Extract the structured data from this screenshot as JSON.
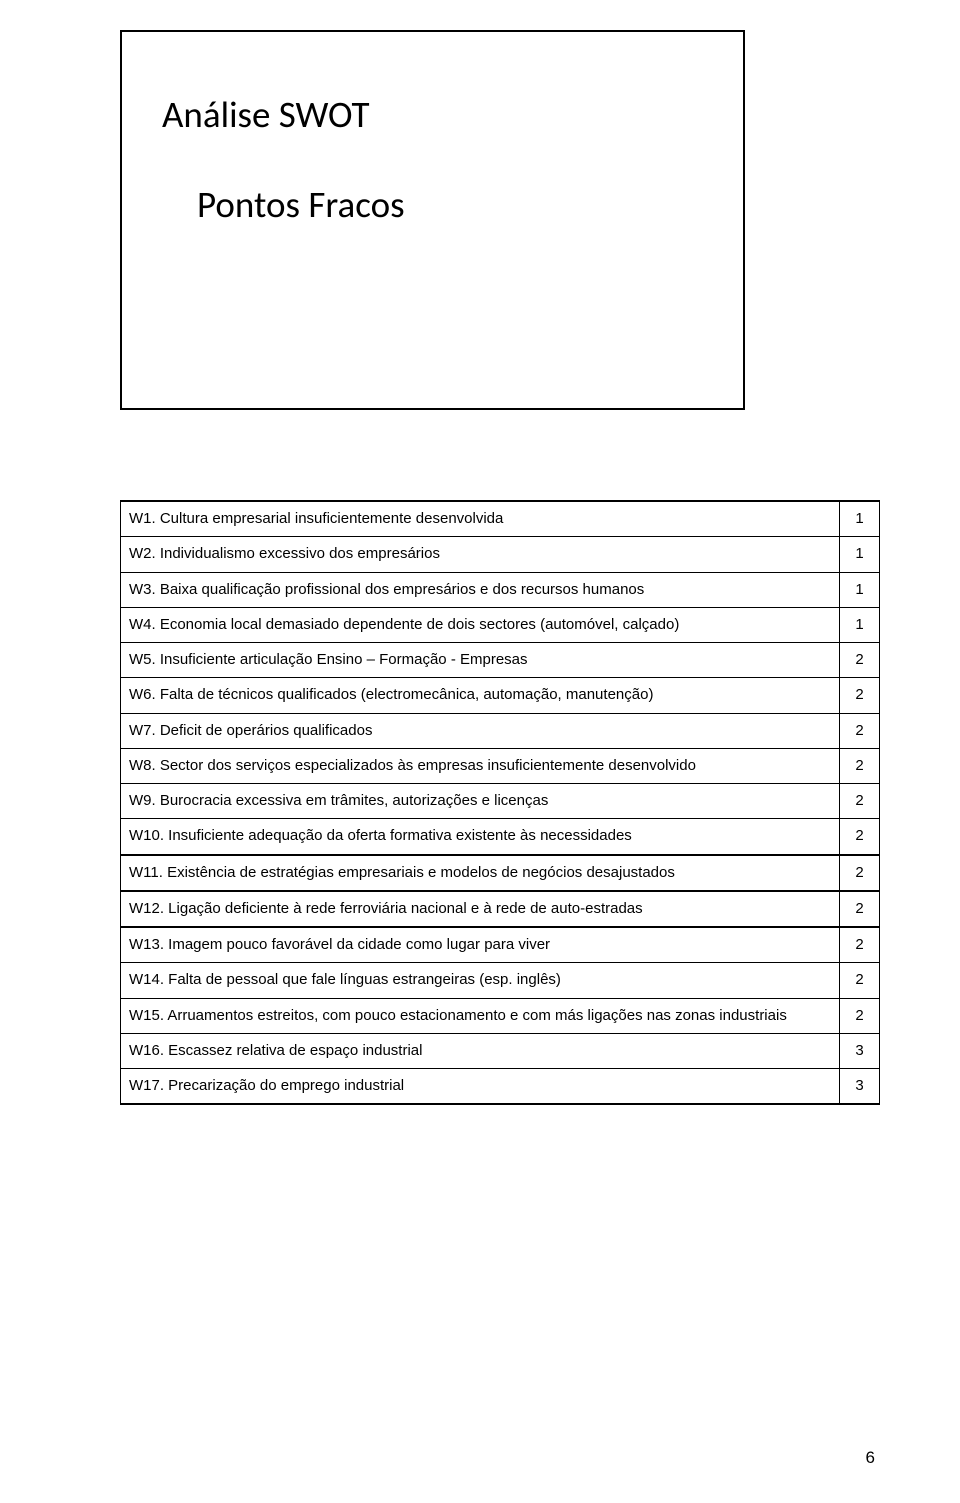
{
  "document": {
    "page_number": "6",
    "colors": {
      "text": "#000000",
      "border": "#000000",
      "background": "#ffffff"
    },
    "title_box": {
      "heading": "Análise SWOT",
      "subheading": "Pontos Fracos"
    },
    "table": {
      "type": "table",
      "font_family": "Verdana",
      "font_size_pt": 11,
      "columns": [
        "label",
        "value"
      ],
      "rows": [
        {
          "label": "W1. Cultura empresarial insuficientemente desenvolvida",
          "value": "1",
          "block_top": false
        },
        {
          "label": "W2. Individualismo excessivo dos empresários",
          "value": "1",
          "block_top": false
        },
        {
          "label": "W3. Baixa qualificação profissional dos empresários e dos recursos humanos",
          "value": "1",
          "block_top": false
        },
        {
          "label": "W4. Economia local demasiado dependente de dois sectores (automóvel, calçado)",
          "value": "1",
          "block_top": false
        },
        {
          "label": "W5. Insuficiente articulação Ensino – Formação - Empresas",
          "value": "2",
          "block_top": false
        },
        {
          "label": "W6. Falta de técnicos qualificados (electromecânica, automação, manutenção)",
          "value": "2",
          "block_top": false
        },
        {
          "label": "W7. Deficit de operários qualificados",
          "value": "2",
          "block_top": false
        },
        {
          "label": "W8. Sector dos serviços especializados às empresas insuficientemente desenvolvido",
          "value": "2",
          "block_top": false
        },
        {
          "label": "W9. Burocracia excessiva em trâmites, autorizações e licenças",
          "value": "2",
          "block_top": false
        },
        {
          "label": "W10. Insuficiente adequação da oferta formativa existente às necessidades",
          "value": "2",
          "block_top": false
        },
        {
          "label": "W11. Existência de estratégias empresariais e modelos de negócios desajustados",
          "value": "2",
          "block_top": true
        },
        {
          "label": "W12. Ligação deficiente à rede ferroviária nacional e à rede de auto-estradas",
          "value": "2",
          "block_top": true
        },
        {
          "label": "W13. Imagem pouco favorável da cidade como lugar para viver",
          "value": "2",
          "block_top": true
        },
        {
          "label": "W14. Falta de pessoal que fale línguas estrangeiras (esp. inglês)",
          "value": "2",
          "block_top": false
        },
        {
          "label": "W15. Arruamentos estreitos, com pouco estacionamento e com más ligações nas zonas industriais",
          "value": "2",
          "block_top": false
        },
        {
          "label": "W16. Escassez relativa de espaço industrial",
          "value": "3",
          "block_top": false
        },
        {
          "label": "W17. Precarização do emprego industrial",
          "value": "3",
          "block_top": false
        }
      ]
    }
  }
}
